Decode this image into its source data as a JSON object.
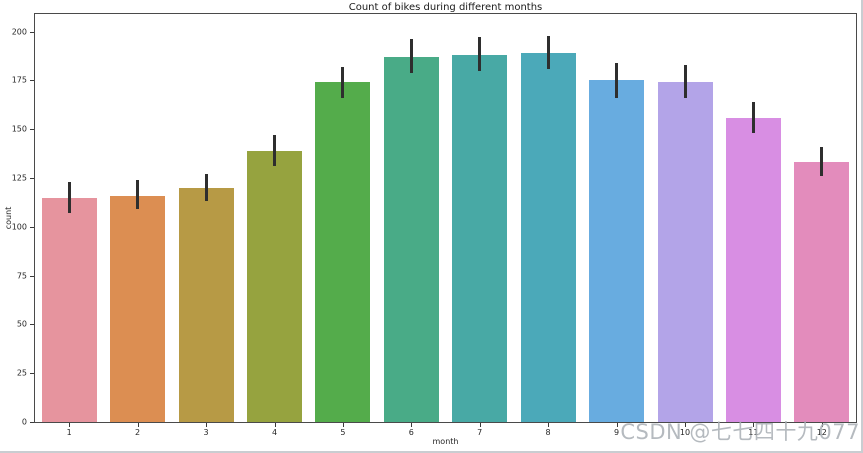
{
  "chart_data": {
    "type": "bar",
    "title": "Count of bikes during different months",
    "xlabel": "month",
    "ylabel": "count",
    "categories": [
      "1",
      "2",
      "3",
      "4",
      "5",
      "6",
      "7",
      "8",
      "9",
      "10",
      "11",
      "12"
    ],
    "values": [
      115,
      116,
      120,
      139,
      174,
      187,
      188,
      189,
      175,
      174,
      156,
      133
    ],
    "error_low": [
      107,
      109,
      113,
      131,
      166,
      179,
      180,
      181,
      166,
      166,
      148,
      126
    ],
    "error_high": [
      123,
      124,
      127,
      147,
      182,
      196,
      197,
      198,
      184,
      183,
      164,
      141
    ],
    "bar_colors": [
      "#e6949e",
      "#dc8e52",
      "#b79a45",
      "#96a33f",
      "#54ac4b",
      "#49ab87",
      "#48a9a5",
      "#4ba9b9",
      "#68ace0",
      "#b3a4e8",
      "#d88ee3",
      "#e38cbc"
    ],
    "errorbar_color": "#2e2e2e",
    "ylim": [
      0,
      209
    ],
    "yticks": [
      0,
      25,
      50,
      75,
      100,
      125,
      150,
      175,
      200
    ],
    "grid": false,
    "legend": null
  },
  "watermark": {
    "text": "CSDN @七七四十九077",
    "color": "#a9afb5"
  }
}
